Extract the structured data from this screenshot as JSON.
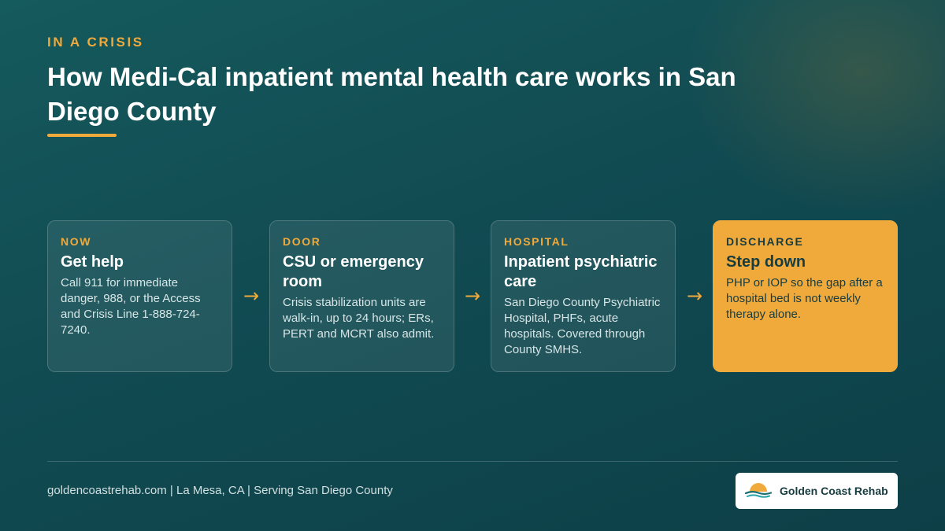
{
  "header": {
    "eyebrow": "IN A CRISIS",
    "title": "How Medi-Cal inpatient mental health care works in San Diego County"
  },
  "steps": [
    {
      "label": "NOW",
      "title": "Get help",
      "description": "Call 911 for immediate danger, 988, or the Access and Crisis Line 1-888-724-7240."
    },
    {
      "label": "DOOR",
      "title": "CSU or emergency room",
      "description": "Crisis stabilization units are walk-in, up to 24 hours; ERs, PERT and MCRT also admit."
    },
    {
      "label": "HOSPITAL",
      "title": "Inpatient psychiatric care",
      "description": "San Diego County Psychiatric Hospital, PHFs, acute hospitals. Covered through County SMHS."
    },
    {
      "label": "DISCHARGE",
      "title": "Step down",
      "description": "PHP or IOP so the gap after a hospital bed is not weekly therapy alone."
    }
  ],
  "arrow_glyph": "→",
  "footer": {
    "text": "goldencoastrehab.com | La Mesa, CA | Serving San Diego County",
    "brand_name": "Golden Coast Rehab",
    "logo_icon": "sunset-waves-logo-icon"
  },
  "colors": {
    "accent": "#f0aa3c",
    "background": "#114b52",
    "dark_text": "#173c40"
  }
}
